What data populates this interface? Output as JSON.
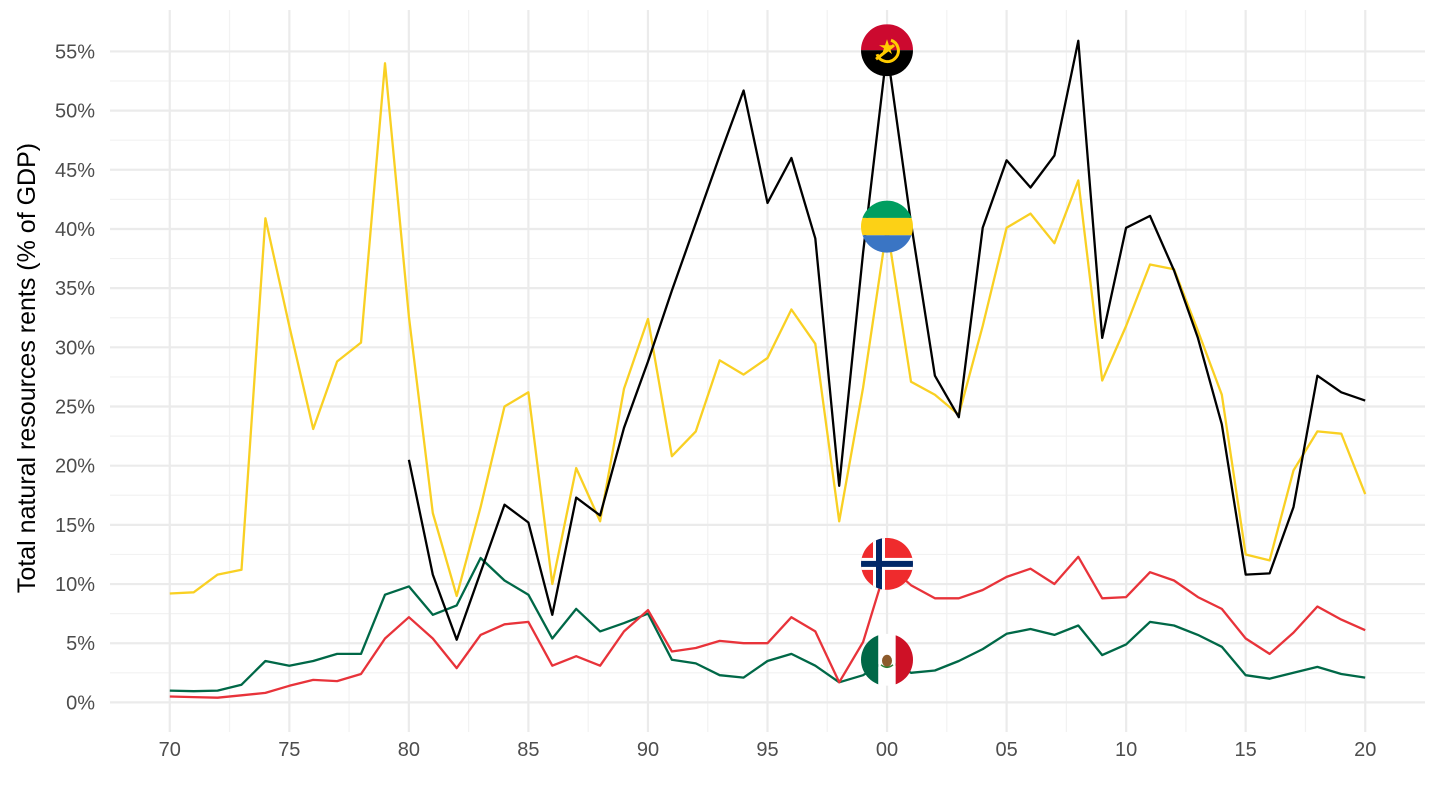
{
  "chart_data": {
    "type": "line",
    "title": "",
    "xlabel": "",
    "ylabel": "Total natural resources rents (% of GDP)",
    "x": [
      1970,
      1971,
      1972,
      1973,
      1974,
      1975,
      1976,
      1977,
      1978,
      1979,
      1980,
      1981,
      1982,
      1983,
      1984,
      1985,
      1986,
      1987,
      1988,
      1989,
      1990,
      1991,
      1992,
      1993,
      1994,
      1995,
      1996,
      1997,
      1998,
      1999,
      2000,
      2001,
      2002,
      2003,
      2004,
      2005,
      2006,
      2007,
      2008,
      2009,
      2010,
      2011,
      2012,
      2013,
      2014,
      2015,
      2016,
      2017,
      2018,
      2019,
      2020
    ],
    "xlim": [
      1967.5,
      2022.5
    ],
    "x_ticks": [
      1970,
      1975,
      1980,
      1985,
      1990,
      1995,
      2000,
      2005,
      2010,
      2015,
      2020
    ],
    "x_tick_labels": [
      "70",
      "75",
      "80",
      "85",
      "90",
      "95",
      "00",
      "05",
      "10",
      "15",
      "20"
    ],
    "ylim": [
      -2.5,
      58.5
    ],
    "y_ticks": [
      0,
      5,
      10,
      15,
      20,
      25,
      30,
      35,
      40,
      45,
      50,
      55
    ],
    "y_tick_labels": [
      "0%",
      "5%",
      "10%",
      "15%",
      "20%",
      "25%",
      "30%",
      "35%",
      "40%",
      "45%",
      "50%",
      "55%"
    ],
    "grid": true,
    "legend": "none (flag markers at 2000)",
    "series": [
      {
        "country": "Angola",
        "color": "#000000",
        "flag_icon": "angola-flag-icon",
        "values": [
          null,
          null,
          null,
          null,
          null,
          null,
          null,
          null,
          null,
          null,
          20.5,
          10.8,
          5.3,
          11.0,
          16.7,
          15.2,
          7.4,
          17.3,
          15.8,
          23.2,
          28.8,
          34.8,
          40.5,
          46.2,
          51.7,
          42.2,
          46.0,
          39.2,
          18.3,
          38.0,
          55.1,
          40.5,
          27.6,
          24.1,
          40.1,
          45.8,
          43.5,
          46.2,
          55.9,
          30.8,
          40.1,
          41.1,
          36.5,
          30.8,
          23.5,
          10.8,
          10.9,
          16.5,
          27.6,
          26.2,
          25.5
        ]
      },
      {
        "country": "Gabon",
        "color": "#f9d023",
        "flag_icon": "gabon-flag-icon",
        "values": [
          9.2,
          9.3,
          10.8,
          11.2,
          40.9,
          31.8,
          23.1,
          28.8,
          30.4,
          54.0,
          32.6,
          16.0,
          9.0,
          16.5,
          25.0,
          26.2,
          10.0,
          19.8,
          15.3,
          26.5,
          32.4,
          20.8,
          22.9,
          28.9,
          27.7,
          29.1,
          33.2,
          30.3,
          15.3,
          26.6,
          40.2,
          27.1,
          26.0,
          24.3,
          31.8,
          40.1,
          41.3,
          38.8,
          44.1,
          27.2,
          31.8,
          37.0,
          36.6,
          31.4,
          26.0,
          12.5,
          12.0,
          19.6,
          22.9,
          22.7,
          17.6
        ]
      },
      {
        "country": "Norway",
        "color": "#e8333a",
        "flag_icon": "norway-flag-icon",
        "values": [
          0.5,
          0.45,
          0.4,
          0.6,
          0.8,
          1.4,
          1.9,
          1.8,
          2.4,
          5.4,
          7.2,
          5.4,
          2.9,
          5.7,
          6.6,
          6.8,
          3.1,
          3.9,
          3.1,
          6.0,
          7.8,
          4.3,
          4.6,
          5.2,
          5.0,
          5.0,
          7.2,
          6.0,
          1.7,
          5.1,
          11.7,
          9.9,
          8.8,
          8.8,
          9.5,
          10.6,
          11.3,
          10.0,
          12.3,
          8.8,
          8.9,
          11.0,
          10.3,
          8.9,
          7.9,
          5.4,
          4.1,
          5.9,
          8.1,
          7.0,
          6.1
        ]
      },
      {
        "country": "Mexico",
        "color": "#006847",
        "flag_icon": "mexico-flag-icon",
        "values": [
          1.0,
          0.95,
          1.0,
          1.5,
          3.5,
          3.1,
          3.5,
          4.1,
          4.1,
          9.1,
          9.8,
          7.4,
          8.2,
          12.2,
          10.3,
          9.1,
          5.4,
          7.9,
          6.0,
          6.7,
          7.5,
          3.6,
          3.3,
          2.3,
          2.1,
          3.5,
          4.1,
          3.1,
          1.7,
          2.3,
          3.6,
          2.5,
          2.7,
          3.5,
          4.5,
          5.8,
          6.2,
          5.7,
          6.5,
          4.0,
          4.9,
          6.8,
          6.5,
          5.7,
          4.7,
          2.3,
          2.0,
          2.5,
          3.0,
          2.4,
          2.1
        ]
      }
    ]
  }
}
